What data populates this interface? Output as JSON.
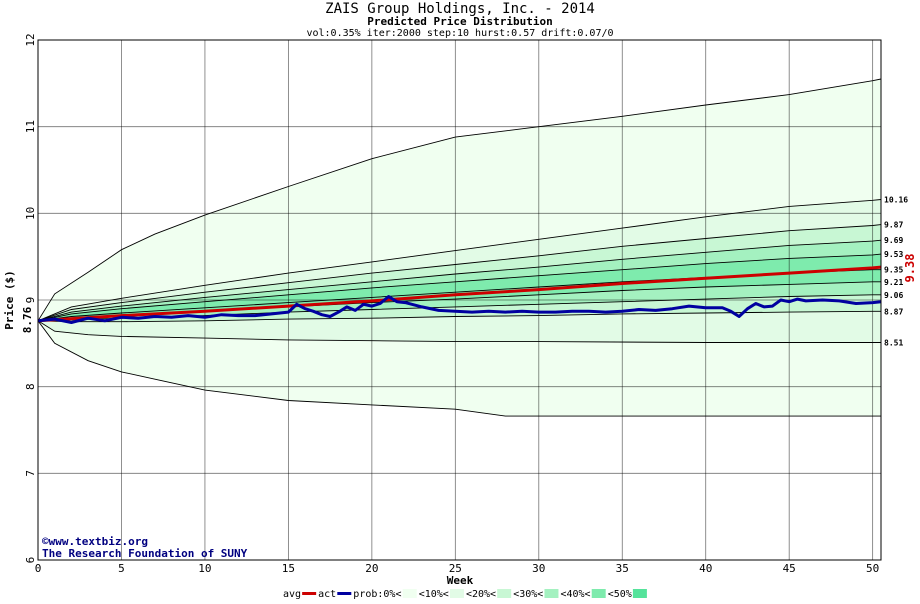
{
  "chart_data": {
    "type": "area",
    "title": "ZAIS Group Holdings, Inc. - 2014",
    "subtitle": "Predicted Price Distribution",
    "params": "vol:0.35% iter:2000 step:10 hurst:0.57 drift:0.07/0",
    "xlabel": "Week",
    "ylabel": "Price ($)",
    "xlim": [
      0,
      50.5
    ],
    "ylim": [
      6,
      12
    ],
    "x_ticks": [
      0,
      5,
      10,
      15,
      20,
      25,
      30,
      35,
      40,
      45,
      50
    ],
    "y_ticks": [
      6,
      7,
      8,
      9,
      10,
      11,
      12
    ],
    "grid": true,
    "start_price_label": "8.76",
    "start_price": 8.76,
    "end_avg_label": "9.38",
    "end_avg": 9.38,
    "colors": {
      "band0": "#f0fff0",
      "band10": "#e2fbe6",
      "band20": "#c8f7d4",
      "band30": "#a4f1c0",
      "band40": "#7eebad",
      "band50": "#55e39b",
      "avg": "#cc0000",
      "act": "#0000a0",
      "grid": "#000000",
      "end_label": "#cc0000"
    },
    "percentile_curves": [
      {
        "end_label": "11.55",
        "show_label": false,
        "points": [
          [
            0,
            8.76
          ],
          [
            1,
            9.07
          ],
          [
            3,
            9.32
          ],
          [
            5,
            9.58
          ],
          [
            7,
            9.76
          ],
          [
            10,
            9.98
          ],
          [
            15,
            10.31
          ],
          [
            20,
            10.63
          ],
          [
            25,
            10.88
          ],
          [
            30,
            11.0
          ],
          [
            35,
            11.12
          ],
          [
            40,
            11.25
          ],
          [
            45,
            11.37
          ],
          [
            50,
            11.53
          ],
          [
            50.5,
            11.55
          ]
        ]
      },
      {
        "end_label": "10.16",
        "show_label": true,
        "points": [
          [
            0,
            8.76
          ],
          [
            2,
            8.92
          ],
          [
            5,
            9.02
          ],
          [
            10,
            9.17
          ],
          [
            15,
            9.31
          ],
          [
            20,
            9.44
          ],
          [
            25,
            9.57
          ],
          [
            30,
            9.7
          ],
          [
            35,
            9.83
          ],
          [
            40,
            9.96
          ],
          [
            45,
            10.08
          ],
          [
            50,
            10.15
          ],
          [
            50.5,
            10.16
          ]
        ]
      },
      {
        "end_label": "9.87",
        "show_label": true,
        "points": [
          [
            0,
            8.76
          ],
          [
            2,
            8.89
          ],
          [
            5,
            8.97
          ],
          [
            10,
            9.09
          ],
          [
            15,
            9.2
          ],
          [
            20,
            9.31
          ],
          [
            25,
            9.41
          ],
          [
            30,
            9.51
          ],
          [
            35,
            9.62
          ],
          [
            40,
            9.71
          ],
          [
            45,
            9.8
          ],
          [
            50,
            9.86
          ],
          [
            50.5,
            9.87
          ]
        ]
      },
      {
        "end_label": "9.69",
        "show_label": true,
        "points": [
          [
            0,
            8.76
          ],
          [
            2,
            8.86
          ],
          [
            5,
            8.93
          ],
          [
            10,
            9.03
          ],
          [
            15,
            9.12
          ],
          [
            20,
            9.21
          ],
          [
            25,
            9.3
          ],
          [
            30,
            9.38
          ],
          [
            35,
            9.47
          ],
          [
            40,
            9.55
          ],
          [
            45,
            9.63
          ],
          [
            50,
            9.68
          ],
          [
            50.5,
            9.69
          ]
        ]
      },
      {
        "end_label": "9.53",
        "show_label": true,
        "points": [
          [
            0,
            8.76
          ],
          [
            2,
            8.84
          ],
          [
            5,
            8.9
          ],
          [
            10,
            8.98
          ],
          [
            15,
            9.06
          ],
          [
            20,
            9.14
          ],
          [
            25,
            9.21
          ],
          [
            30,
            9.28
          ],
          [
            35,
            9.35
          ],
          [
            40,
            9.42
          ],
          [
            45,
            9.48
          ],
          [
            50,
            9.52
          ],
          [
            50.5,
            9.53
          ]
        ]
      },
      {
        "end_label": "9.35",
        "show_label": true,
        "points": [
          [
            0,
            8.76
          ],
          [
            2,
            8.81
          ],
          [
            5,
            8.85
          ],
          [
            10,
            8.91
          ],
          [
            15,
            8.97
          ],
          [
            20,
            9.03
          ],
          [
            25,
            9.09
          ],
          [
            30,
            9.15
          ],
          [
            35,
            9.21
          ],
          [
            40,
            9.26
          ],
          [
            45,
            9.31
          ],
          [
            50,
            9.35
          ],
          [
            50.5,
            9.35
          ]
        ]
      },
      {
        "end_label": "9.21",
        "show_label": true,
        "points": [
          [
            0,
            8.76
          ],
          [
            2,
            8.79
          ],
          [
            5,
            8.82
          ],
          [
            10,
            8.87
          ],
          [
            15,
            8.92
          ],
          [
            20,
            8.97
          ],
          [
            25,
            9.01
          ],
          [
            30,
            9.06
          ],
          [
            35,
            9.11
          ],
          [
            40,
            9.15
          ],
          [
            45,
            9.18
          ],
          [
            50,
            9.21
          ],
          [
            50.5,
            9.21
          ]
        ]
      },
      {
        "end_label": "9.06",
        "show_label": true,
        "points": [
          [
            0,
            8.76
          ],
          [
            2,
            8.77
          ],
          [
            5,
            8.79
          ],
          [
            10,
            8.82
          ],
          [
            15,
            8.86
          ],
          [
            20,
            8.89
          ],
          [
            25,
            8.92
          ],
          [
            30,
            8.95
          ],
          [
            35,
            8.98
          ],
          [
            40,
            9.01
          ],
          [
            45,
            9.04
          ],
          [
            50,
            9.06
          ],
          [
            50.5,
            9.06
          ]
        ]
      },
      {
        "end_label": "8.87",
        "show_label": true,
        "points": [
          [
            0,
            8.76
          ],
          [
            2,
            8.75
          ],
          [
            5,
            8.75
          ],
          [
            10,
            8.76
          ],
          [
            15,
            8.78
          ],
          [
            20,
            8.79
          ],
          [
            25,
            8.81
          ],
          [
            30,
            8.82
          ],
          [
            35,
            8.84
          ],
          [
            40,
            8.85
          ],
          [
            45,
            8.86
          ],
          [
            50,
            8.87
          ],
          [
            50.5,
            8.87
          ]
        ]
      },
      {
        "end_label": "8.51",
        "show_label": true,
        "points": [
          [
            0,
            8.76
          ],
          [
            1,
            8.64
          ],
          [
            3,
            8.6
          ],
          [
            5,
            8.58
          ],
          [
            10,
            8.56
          ],
          [
            15,
            8.54
          ],
          [
            20,
            8.53
          ],
          [
            25,
            8.52
          ],
          [
            30,
            8.52
          ],
          [
            40,
            8.51
          ],
          [
            50,
            8.51
          ],
          [
            50.5,
            8.51
          ]
        ]
      },
      {
        "end_label": "7.66",
        "show_label": false,
        "points": [
          [
            0,
            8.76
          ],
          [
            1,
            8.5
          ],
          [
            3,
            8.3
          ],
          [
            5,
            8.17
          ],
          [
            10,
            7.96
          ],
          [
            15,
            7.84
          ],
          [
            20,
            7.79
          ],
          [
            25,
            7.74
          ],
          [
            28,
            7.66
          ],
          [
            35,
            7.66
          ],
          [
            50.5,
            7.66
          ]
        ]
      }
    ],
    "series": [
      {
        "name": "avg",
        "points": [
          [
            0,
            8.76
          ],
          [
            5,
            8.82
          ],
          [
            10,
            8.87
          ],
          [
            15,
            8.93
          ],
          [
            20,
            8.99
          ],
          [
            25,
            9.06
          ],
          [
            30,
            9.12
          ],
          [
            35,
            9.19
          ],
          [
            40,
            9.25
          ],
          [
            45,
            9.31
          ],
          [
            50,
            9.37
          ],
          [
            50.5,
            9.38
          ]
        ]
      },
      {
        "name": "act",
        "points": [
          [
            0,
            8.76
          ],
          [
            1,
            8.78
          ],
          [
            2,
            8.74
          ],
          [
            3,
            8.79
          ],
          [
            4,
            8.76
          ],
          [
            5,
            8.8
          ],
          [
            6,
            8.79
          ],
          [
            7,
            8.81
          ],
          [
            8,
            8.8
          ],
          [
            9,
            8.82
          ],
          [
            10,
            8.8
          ],
          [
            11,
            8.83
          ],
          [
            12,
            8.82
          ],
          [
            13,
            8.82
          ],
          [
            14,
            8.84
          ],
          [
            15,
            8.86
          ],
          [
            15.5,
            8.95
          ],
          [
            16,
            8.9
          ],
          [
            16.5,
            8.87
          ],
          [
            17,
            8.83
          ],
          [
            17.5,
            8.81
          ],
          [
            18,
            8.86
          ],
          [
            18.5,
            8.92
          ],
          [
            19,
            8.88
          ],
          [
            19.5,
            8.95
          ],
          [
            20,
            8.93
          ],
          [
            20.5,
            8.96
          ],
          [
            21,
            9.04
          ],
          [
            21.5,
            8.98
          ],
          [
            22,
            8.97
          ],
          [
            23,
            8.92
          ],
          [
            24,
            8.88
          ],
          [
            25,
            8.87
          ],
          [
            26,
            8.86
          ],
          [
            27,
            8.87
          ],
          [
            28,
            8.86
          ],
          [
            29,
            8.87
          ],
          [
            30,
            8.86
          ],
          [
            31,
            8.86
          ],
          [
            32,
            8.87
          ],
          [
            33,
            8.87
          ],
          [
            34,
            8.86
          ],
          [
            35,
            8.87
          ],
          [
            36,
            8.89
          ],
          [
            37,
            8.88
          ],
          [
            38,
            8.9
          ],
          [
            39,
            8.93
          ],
          [
            40,
            8.91
          ],
          [
            41,
            8.91
          ],
          [
            41.5,
            8.87
          ],
          [
            42,
            8.81
          ],
          [
            42.5,
            8.9
          ],
          [
            43,
            8.96
          ],
          [
            43.5,
            8.92
          ],
          [
            44,
            8.93
          ],
          [
            44.5,
            9.0
          ],
          [
            45,
            8.98
          ],
          [
            45.5,
            9.01
          ],
          [
            46,
            8.99
          ],
          [
            47,
            9.0
          ],
          [
            48,
            8.99
          ],
          [
            49,
            8.96
          ],
          [
            50,
            8.97
          ],
          [
            50.5,
            8.98
          ]
        ]
      }
    ],
    "credit": {
      "site": "©www.textbiz.org",
      "org": "The Research Foundation of SUNY"
    },
    "legend": {
      "placement": "bottom",
      "items": [
        {
          "label": "avg",
          "kind": "line",
          "color": "#cc0000"
        },
        {
          "label": "act",
          "kind": "line",
          "color": "#0000a0"
        },
        {
          "label": "prob:0%<",
          "kind": "swatch",
          "color": "#f0fff0"
        },
        {
          "label": "<10%<",
          "kind": "swatch",
          "color": "#e2fbe6"
        },
        {
          "label": "<20%<",
          "kind": "swatch",
          "color": "#c8f7d4"
        },
        {
          "label": "<30%<",
          "kind": "swatch",
          "color": "#a4f1c0"
        },
        {
          "label": "<40%<",
          "kind": "swatch",
          "color": "#7eebad"
        },
        {
          "label": "<50%",
          "kind": "swatch",
          "color": "#55e39b"
        }
      ]
    }
  }
}
